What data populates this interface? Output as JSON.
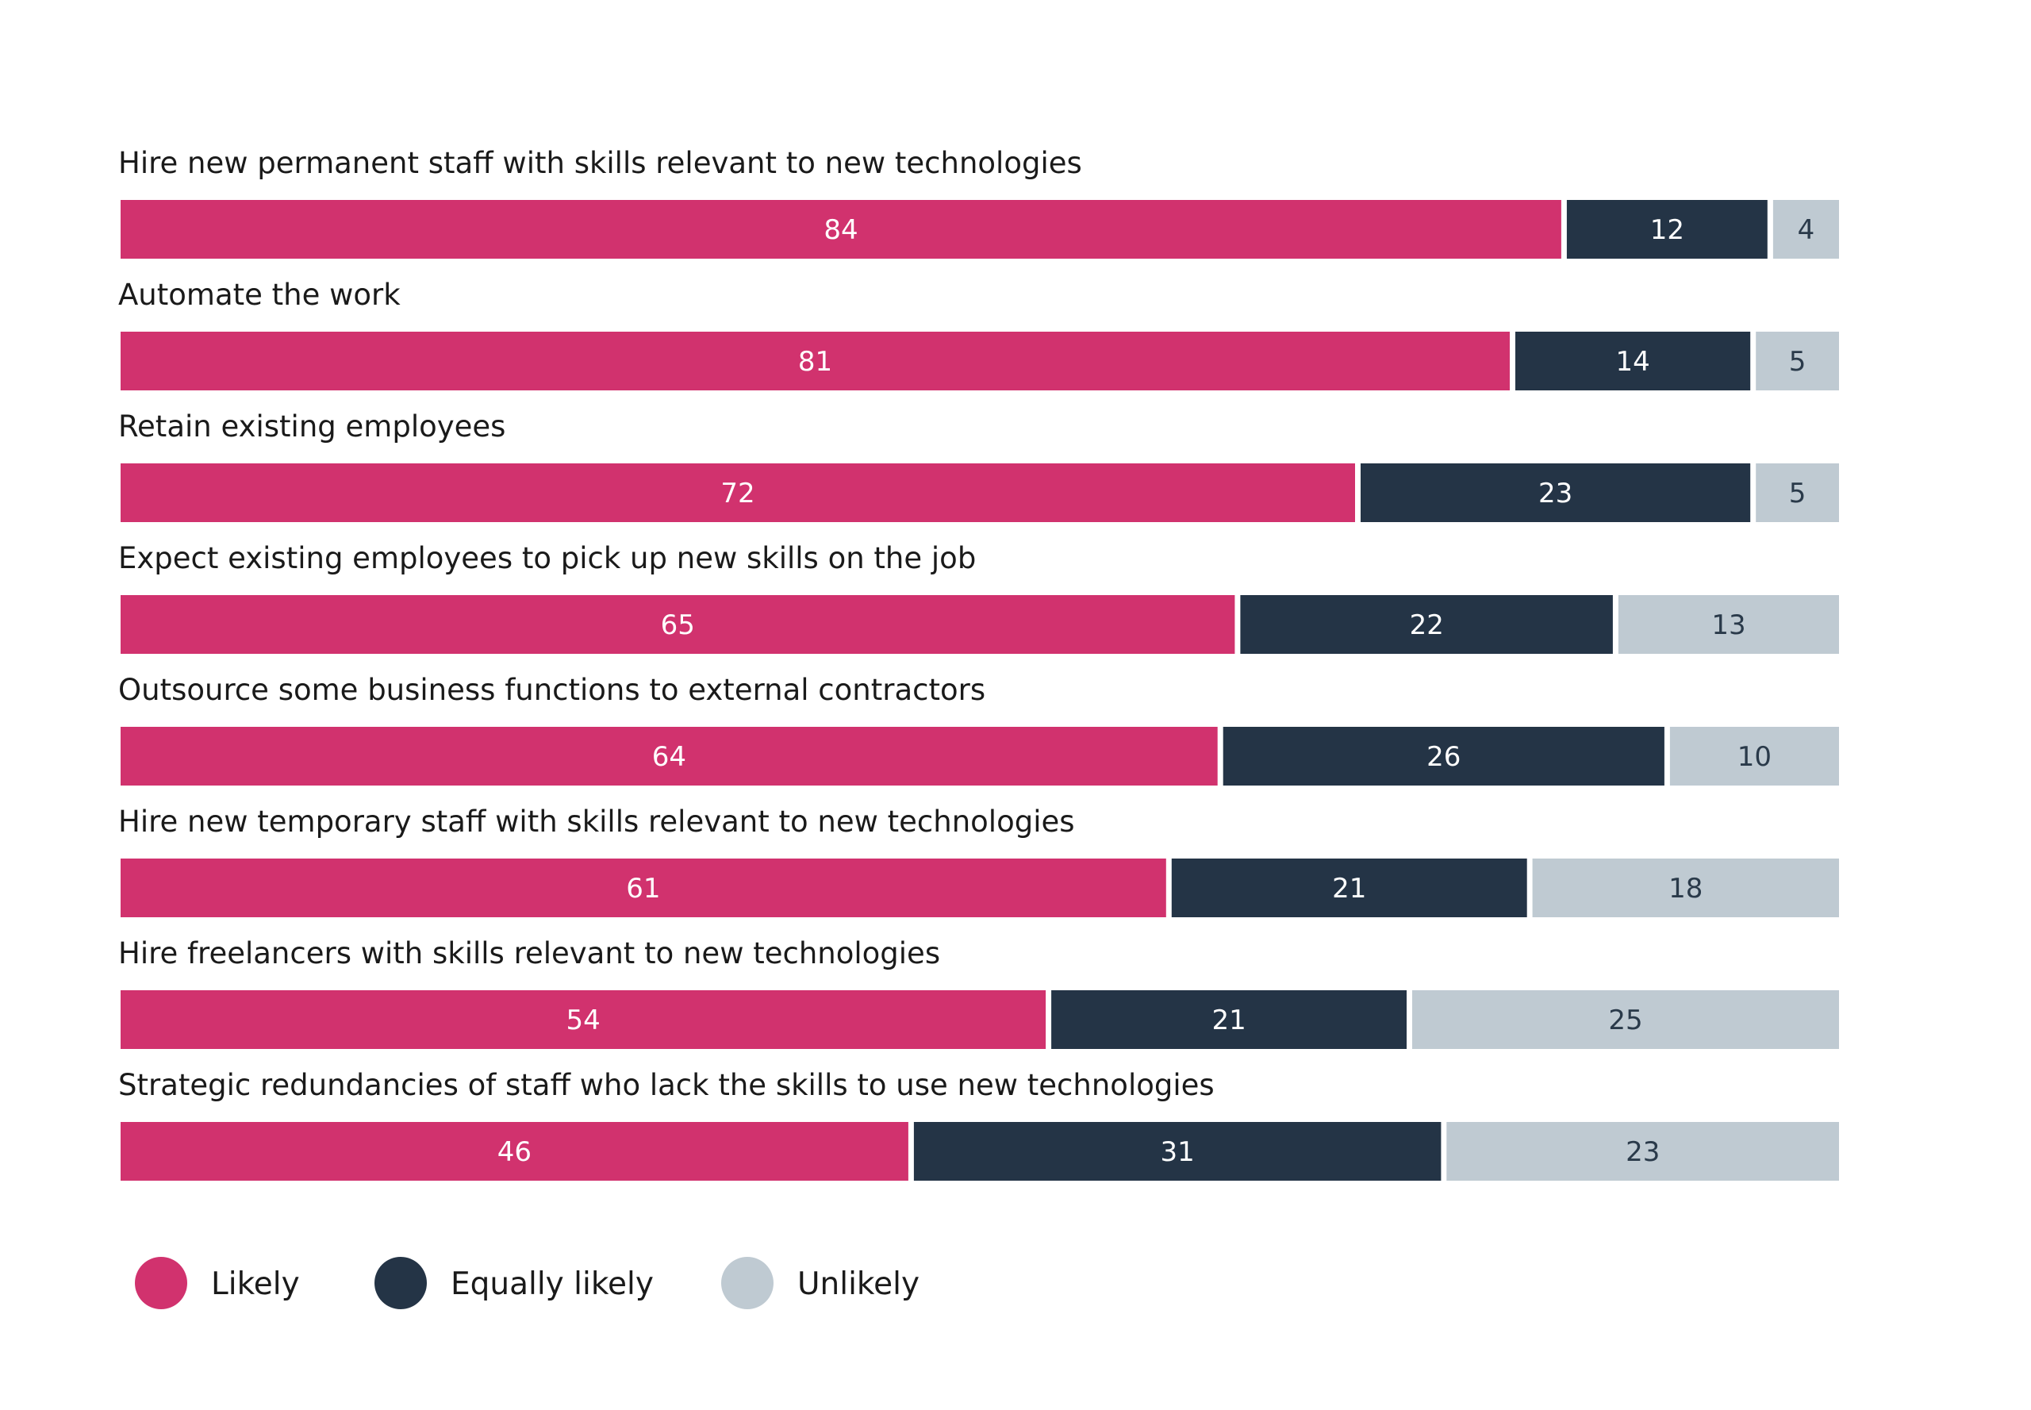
{
  "chart_data": {
    "type": "bar",
    "orientation": "horizontal",
    "stacked": true,
    "categories": [
      "Hire new permanent staff with skills relevant to new technologies",
      "Automate the work",
      "Retain existing employees",
      "Expect existing employees to pick up new skills on the job",
      "Outsource some business functions to external contractors",
      "Hire new temporary staff with skills relevant to new technologies",
      "Hire freelancers with skills relevant to new technologies",
      "Strategic redundancies of staff who lack the skills to use new technologies"
    ],
    "series": [
      {
        "name": "Likely",
        "color": "#d1326e",
        "text_color": "#ffffff",
        "values": [
          84,
          81,
          72,
          65,
          64,
          61,
          54,
          46
        ]
      },
      {
        "name": "Equally likely",
        "color": "#243446",
        "text_color": "#ffffff",
        "values": [
          12,
          14,
          23,
          22,
          26,
          21,
          21,
          31
        ]
      },
      {
        "name": "Unlikely",
        "color": "#bfcad2",
        "text_color": "#2a3a4a",
        "values": [
          4,
          5,
          5,
          13,
          10,
          18,
          25,
          23
        ]
      }
    ],
    "xlim": [
      0,
      100
    ],
    "data_labels": true,
    "grid": false,
    "legend_position": "bottom-left"
  }
}
